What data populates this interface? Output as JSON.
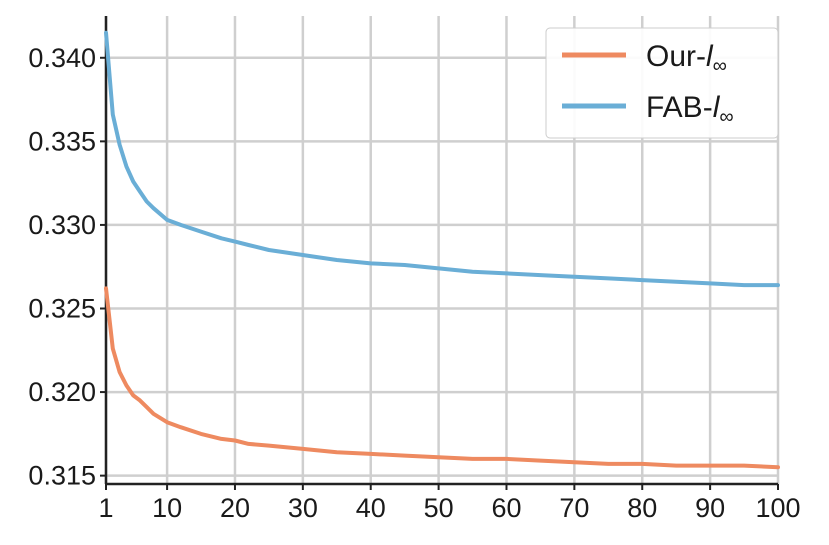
{
  "chart_data": {
    "type": "line",
    "title": "",
    "xlabel": "",
    "ylabel": "",
    "xlim": [
      1,
      100
    ],
    "ylim": [
      0.3145,
      0.3425
    ],
    "grid": true,
    "legend_position": "top-right",
    "x_ticks": [
      1,
      10,
      20,
      30,
      40,
      50,
      60,
      70,
      80,
      90,
      100
    ],
    "x_tick_labels": [
      "1",
      "10",
      "20",
      "30",
      "40",
      "50",
      "60",
      "70",
      "80",
      "90",
      "100"
    ],
    "y_ticks": [
      0.315,
      0.32,
      0.325,
      0.33,
      0.335,
      0.34
    ],
    "y_tick_labels": [
      "0.315",
      "0.320",
      "0.325",
      "0.330",
      "0.335",
      "0.340"
    ],
    "x": [
      1,
      2,
      3,
      4,
      5,
      6,
      7,
      8,
      10,
      12,
      15,
      18,
      20,
      22,
      25,
      30,
      35,
      40,
      45,
      50,
      55,
      60,
      65,
      70,
      75,
      80,
      85,
      90,
      95,
      100
    ],
    "series": [
      {
        "name": "Our-l∞",
        "legend_base": "Our-",
        "legend_l": "l",
        "legend_sub": "∞",
        "color": "#ee8a60",
        "values": [
          0.3262,
          0.3226,
          0.3212,
          0.3204,
          0.3198,
          0.3195,
          0.3191,
          0.3187,
          0.3182,
          0.3179,
          0.3175,
          0.3172,
          0.3171,
          0.3169,
          0.3168,
          0.3166,
          0.3164,
          0.3163,
          0.3162,
          0.3161,
          0.316,
          0.316,
          0.3159,
          0.3158,
          0.3157,
          0.3157,
          0.3156,
          0.3156,
          0.3156,
          0.3155
        ]
      },
      {
        "name": "FAB-l∞",
        "legend_base": "FAB-",
        "legend_l": "l",
        "legend_sub": "∞",
        "color": "#6aaed6",
        "values": [
          0.3415,
          0.3366,
          0.3348,
          0.3335,
          0.3326,
          0.332,
          0.3314,
          0.331,
          0.3303,
          0.33,
          0.3296,
          0.3292,
          0.329,
          0.3288,
          0.3285,
          0.3282,
          0.3279,
          0.3277,
          0.3276,
          0.3274,
          0.3272,
          0.3271,
          0.327,
          0.3269,
          0.3268,
          0.3267,
          0.3266,
          0.3265,
          0.3264,
          0.3264
        ]
      }
    ]
  }
}
